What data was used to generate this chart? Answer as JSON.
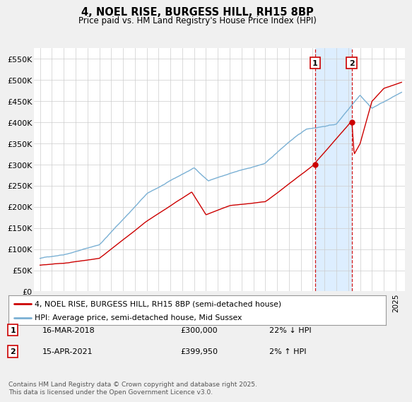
{
  "title": "4, NOEL RISE, BURGESS HILL, RH15 8BP",
  "subtitle": "Price paid vs. HM Land Registry's House Price Index (HPI)",
  "legend_label_red": "4, NOEL RISE, BURGESS HILL, RH15 8BP (semi-detached house)",
  "legend_label_blue": "HPI: Average price, semi-detached house, Mid Sussex",
  "transactions": [
    {
      "label": "1",
      "date": "16-MAR-2018",
      "price": 300000,
      "hpi_diff": "22% ↓ HPI",
      "x_year": 2018.21
    },
    {
      "label": "2",
      "date": "15-APR-2021",
      "price": 399950,
      "hpi_diff": "2% ↑ HPI",
      "x_year": 2021.29
    }
  ],
  "footnote": "Contains HM Land Registry data © Crown copyright and database right 2025.\nThis data is licensed under the Open Government Licence v3.0.",
  "ylim": [
    0,
    575000
  ],
  "yticks": [
    0,
    50000,
    100000,
    150000,
    200000,
    250000,
    300000,
    350000,
    400000,
    450000,
    500000,
    550000
  ],
  "ytick_labels": [
    "£0",
    "£50K",
    "£100K",
    "£150K",
    "£200K",
    "£250K",
    "£300K",
    "£350K",
    "£400K",
    "£450K",
    "£500K",
    "£550K"
  ],
  "xlim_start": 1994.5,
  "xlim_end": 2025.8,
  "background_color": "#f0f0f0",
  "plot_bg_color": "#ffffff",
  "red_color": "#cc0000",
  "blue_color": "#7ab0d4",
  "highlight_bg": "#ddeeff",
  "vline_color": "#cc0000"
}
